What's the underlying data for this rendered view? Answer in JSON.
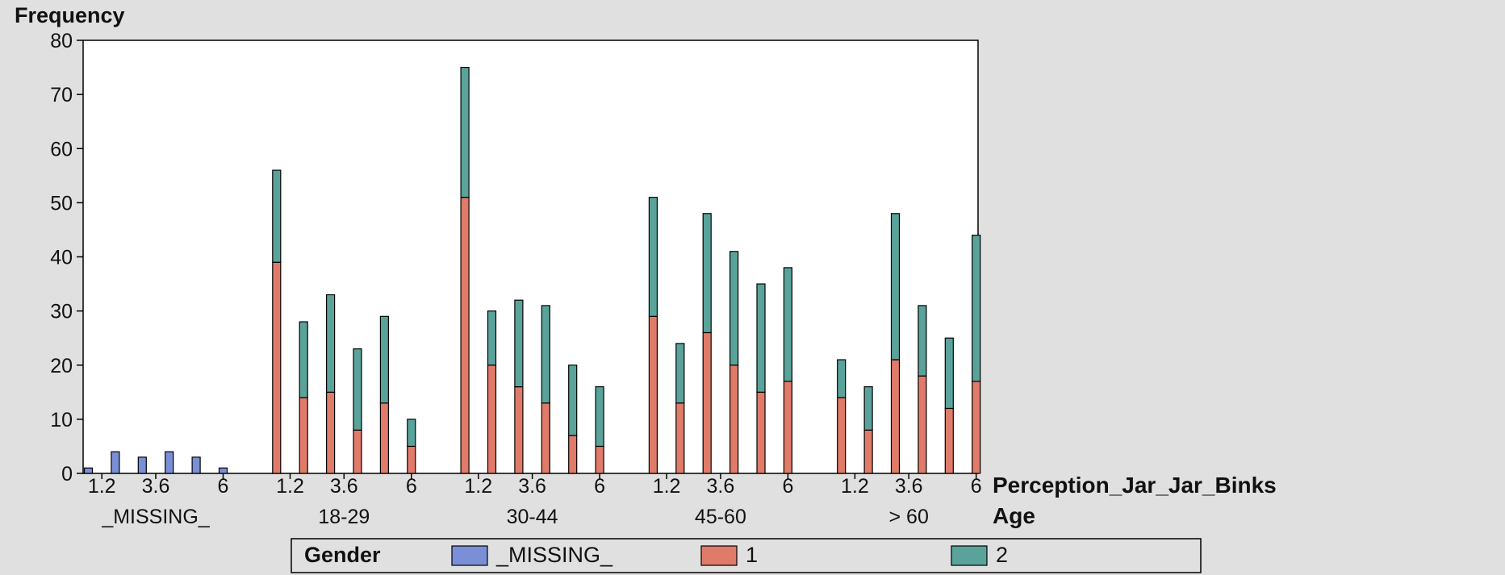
{
  "chart_data": {
    "type": "bar",
    "stacked": true,
    "ylabel": "Frequency",
    "xlabel": "Perception_Jar_Jar_Binks",
    "group_label": "Age",
    "ylim": [
      0,
      80
    ],
    "y_ticks": [
      0,
      10,
      20,
      30,
      40,
      50,
      60,
      70,
      80
    ],
    "x_tick_labels": [
      "1.2",
      "3.6",
      "6"
    ],
    "legend": {
      "title": "Gender",
      "placement": "bottom",
      "entries": [
        {
          "label": "_MISSING_",
          "color": "#7b8fd6"
        },
        {
          "label": "1",
          "color": "#e07b6a"
        },
        {
          "label": "2",
          "color": "#5aa39a"
        }
      ]
    },
    "series": [
      {
        "name": "_MISSING_",
        "color": "#7b8fd6"
      },
      {
        "name": "1",
        "color": "#e07b6a"
      },
      {
        "name": "2",
        "color": "#5aa39a"
      }
    ],
    "groups": [
      {
        "label": "_MISSING_",
        "bars": [
          {
            "_MISSING_": 1,
            "1": 0,
            "2": 0
          },
          {
            "_MISSING_": 4,
            "1": 0,
            "2": 0
          },
          {
            "_MISSING_": 3,
            "1": 0,
            "2": 0
          },
          {
            "_MISSING_": 4,
            "1": 0,
            "2": 0
          },
          {
            "_MISSING_": 3,
            "1": 0,
            "2": 0
          },
          {
            "_MISSING_": 1,
            "1": 0,
            "2": 0
          }
        ]
      },
      {
        "label": "18-29",
        "bars": [
          {
            "_MISSING_": 0,
            "1": 39,
            "2": 17
          },
          {
            "_MISSING_": 0,
            "1": 14,
            "2": 14
          },
          {
            "_MISSING_": 0,
            "1": 15,
            "2": 18
          },
          {
            "_MISSING_": 0,
            "1": 8,
            "2": 15
          },
          {
            "_MISSING_": 0,
            "1": 13,
            "2": 16
          },
          {
            "_MISSING_": 0,
            "1": 5,
            "2": 5
          }
        ]
      },
      {
        "label": "30-44",
        "bars": [
          {
            "_MISSING_": 0,
            "1": 51,
            "2": 24
          },
          {
            "_MISSING_": 0,
            "1": 20,
            "2": 10
          },
          {
            "_MISSING_": 0,
            "1": 16,
            "2": 16
          },
          {
            "_MISSING_": 0,
            "1": 13,
            "2": 18
          },
          {
            "_MISSING_": 0,
            "1": 7,
            "2": 13
          },
          {
            "_MISSING_": 0,
            "1": 5,
            "2": 11
          }
        ]
      },
      {
        "label": "45-60",
        "bars": [
          {
            "_MISSING_": 0,
            "1": 29,
            "2": 22
          },
          {
            "_MISSING_": 0,
            "1": 13,
            "2": 11
          },
          {
            "_MISSING_": 0,
            "1": 26,
            "2": 22
          },
          {
            "_MISSING_": 0,
            "1": 20,
            "2": 21
          },
          {
            "_MISSING_": 0,
            "1": 15,
            "2": 20
          },
          {
            "_MISSING_": 0,
            "1": 17,
            "2": 21
          }
        ]
      },
      {
        "label": "> 60",
        "bars": [
          {
            "_MISSING_": 0,
            "1": 14,
            "2": 7
          },
          {
            "_MISSING_": 0,
            "1": 8,
            "2": 8
          },
          {
            "_MISSING_": 0,
            "1": 21,
            "2": 27
          },
          {
            "_MISSING_": 0,
            "1": 18,
            "2": 13
          },
          {
            "_MISSING_": 0,
            "1": 12,
            "2": 13
          },
          {
            "_MISSING_": 0,
            "1": 17,
            "2": 27
          }
        ]
      }
    ]
  }
}
